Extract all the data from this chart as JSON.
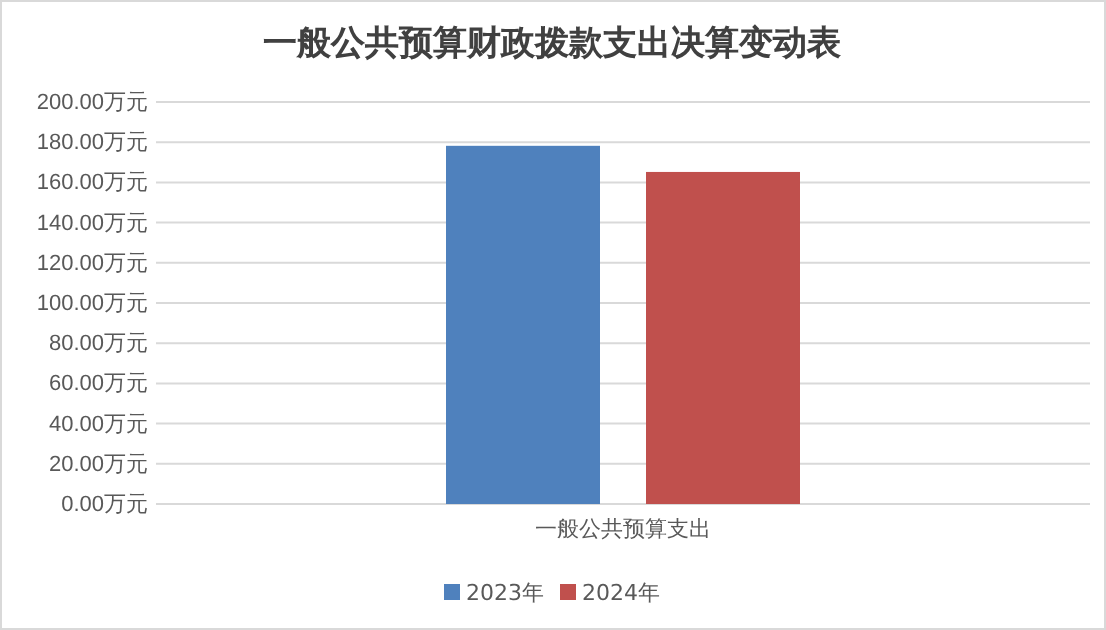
{
  "chart_data": {
    "type": "bar",
    "title": "一般公共预算财政拨款支出决算变动表",
    "categories": [
      "一般公共预算支出"
    ],
    "series": [
      {
        "name": "2023年",
        "color": "#4f81bd",
        "values": [
          178.2
        ]
      },
      {
        "name": "2024年",
        "color": "#c0504d",
        "values": [
          165.2
        ]
      }
    ],
    "ylim": [
      0,
      200
    ],
    "yticks": [
      {
        "value": 0,
        "label": "0.00万元"
      },
      {
        "value": 20,
        "label": "20.00万元"
      },
      {
        "value": 40,
        "label": "40.00万元"
      },
      {
        "value": 60,
        "label": "60.00万元"
      },
      {
        "value": 80,
        "label": "80.00万元"
      },
      {
        "value": 100,
        "label": "100.00万元"
      },
      {
        "value": 120,
        "label": "120.00万元"
      },
      {
        "value": 140,
        "label": "140.00万元"
      },
      {
        "value": 160,
        "label": "160.00万元"
      },
      {
        "value": 180,
        "label": "180.00万元"
      },
      {
        "value": 200,
        "label": "200.00万元"
      }
    ],
    "grid": "y",
    "legend": "bottom"
  }
}
